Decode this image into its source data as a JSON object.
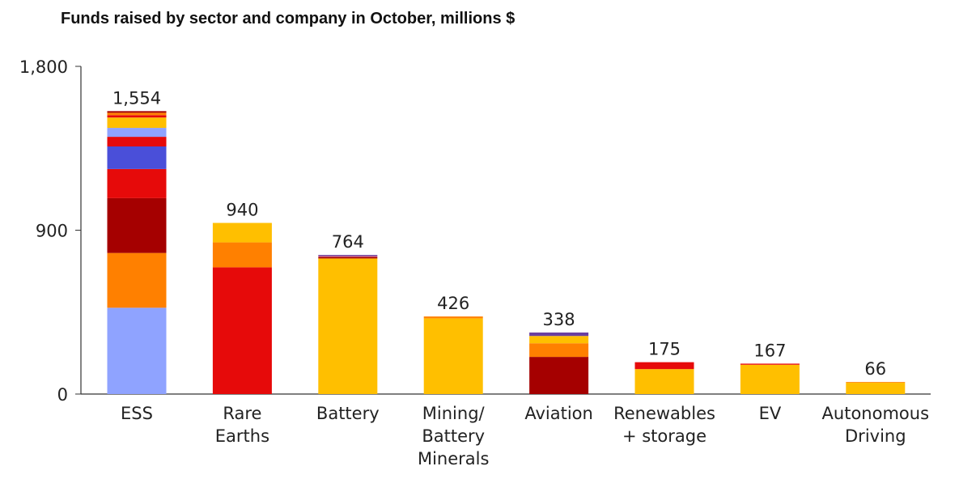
{
  "chart_data": {
    "type": "bar",
    "stacked": true,
    "title": "Funds raised by sector and company in October, millions $",
    "xlabel": "",
    "ylabel": "",
    "ylim": [
      0,
      1800
    ],
    "yticks": [
      "0",
      "900",
      "1,800"
    ],
    "ytick_values": [
      0,
      900,
      1800
    ],
    "grid": false,
    "colors": {
      "lightblue": "#8FA3FF",
      "orange": "#FF8000",
      "darkred": "#A50000",
      "red": "#E60A0A",
      "blue": "#4A4FD9",
      "yellow": "#FFBF00",
      "purple": "#6A3FA0",
      "pink": "#E07090"
    },
    "bars": [
      {
        "category": [
          "ESS"
        ],
        "total_label": "1,554",
        "segments": [
          {
            "value": 474,
            "color": "lightblue"
          },
          {
            "value": 301,
            "color": "orange"
          },
          {
            "value": 301,
            "color": "darkred"
          },
          {
            "value": 160,
            "color": "red"
          },
          {
            "value": 124,
            "color": "blue"
          },
          {
            "value": 53,
            "color": "red"
          },
          {
            "value": 49,
            "color": "lightblue"
          },
          {
            "value": 57,
            "color": "yellow"
          },
          {
            "value": 13,
            "color": "red"
          },
          {
            "value": 13,
            "color": "orange"
          },
          {
            "value": 9,
            "color": "darkred"
          }
        ]
      },
      {
        "category": [
          "Rare",
          "Earths"
        ],
        "total_label": "940",
        "segments": [
          {
            "value": 696,
            "color": "red"
          },
          {
            "value": 137,
            "color": "orange"
          },
          {
            "value": 107,
            "color": "yellow"
          }
        ]
      },
      {
        "category": [
          "Battery"
        ],
        "total_label": "764",
        "segments": [
          {
            "value": 745,
            "color": "yellow"
          },
          {
            "value": 8,
            "color": "darkred"
          },
          {
            "value": 5,
            "color": "pink"
          },
          {
            "value": 6,
            "color": "purple"
          }
        ]
      },
      {
        "category": [
          "Mining/",
          "Battery",
          "Minerals"
        ],
        "total_label": "426",
        "segments": [
          {
            "value": 416,
            "color": "yellow"
          },
          {
            "value": 10,
            "color": "orange"
          }
        ]
      },
      {
        "category": [
          "Aviation"
        ],
        "total_label": "338",
        "segments": [
          {
            "value": 204,
            "color": "darkred"
          },
          {
            "value": 75,
            "color": "orange"
          },
          {
            "value": 40,
            "color": "yellow"
          },
          {
            "value": 19,
            "color": "purple"
          }
        ]
      },
      {
        "category": [
          "Renewables",
          "+ storage"
        ],
        "total_label": "175",
        "segments": [
          {
            "value": 137,
            "color": "yellow"
          },
          {
            "value": 38,
            "color": "red"
          }
        ]
      },
      {
        "category": [
          "EV"
        ],
        "total_label": "167",
        "segments": [
          {
            "value": 161,
            "color": "yellow"
          },
          {
            "value": 6,
            "color": "red"
          }
        ]
      },
      {
        "category": [
          "Autonomous",
          "Driving"
        ],
        "total_label": "66",
        "segments": [
          {
            "value": 62,
            "color": "yellow"
          },
          {
            "value": 4,
            "color": "orange"
          }
        ]
      }
    ]
  }
}
